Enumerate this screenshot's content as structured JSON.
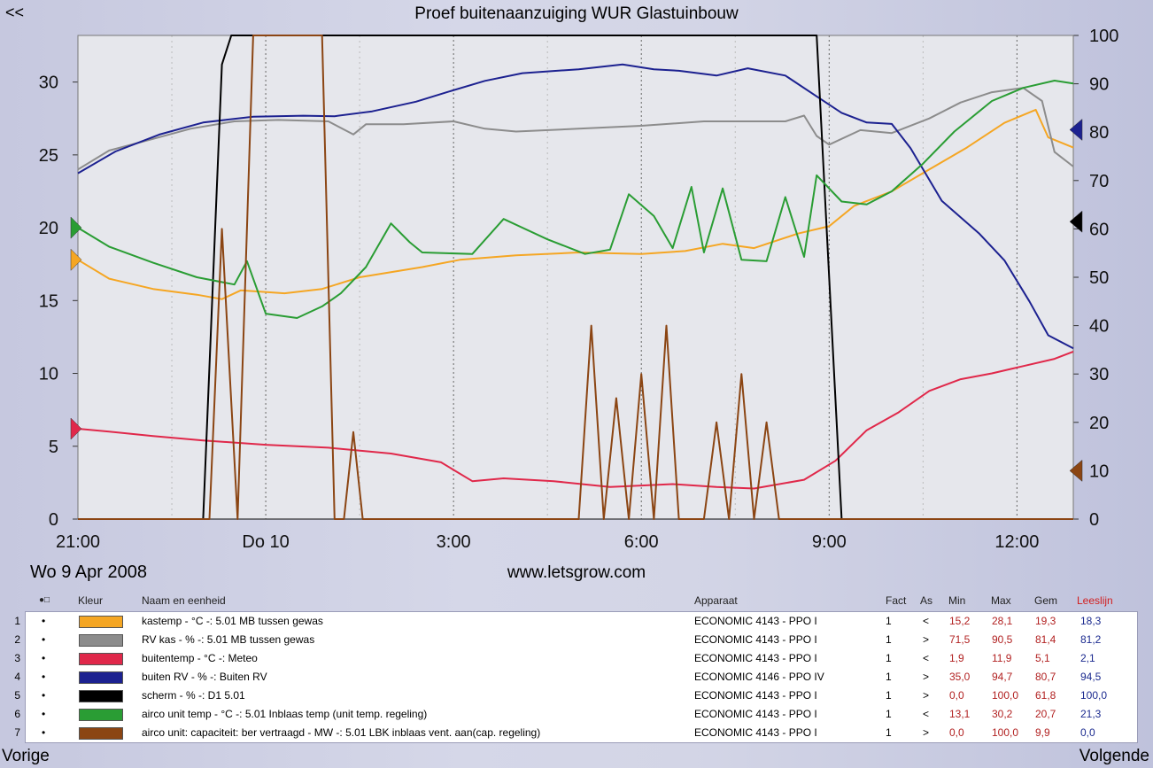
{
  "header": {
    "back_label": "<<",
    "title": "Proef buitenaanzuiging WUR Glastuinbouw"
  },
  "footer": {
    "date": "Wo  9  Apr 2008",
    "url": "www.letsgrow.com",
    "prev_label": "Vorige",
    "next_label": "Volgende"
  },
  "legend": {
    "columns": {
      "dot": "●□",
      "kleur": "Kleur",
      "naam": "Naam en eenheid",
      "apparaat": "Apparaat",
      "fact": "Fact",
      "as": "As",
      "min": "Min",
      "max": "Max",
      "gem": "Gem",
      "leeslijn": "Leeslijn"
    },
    "rows": [
      {
        "num": "1",
        "dot": "•",
        "color": "#f5a623",
        "naam": "kastemp - °C -: 5.01 MB tussen gewas",
        "apparaat": "ECONOMIC 4143 - PPO I",
        "fact": "1",
        "as": "<",
        "min": "15,2",
        "max": "28,1",
        "gem": "19,3",
        "leeslijn": "18,3"
      },
      {
        "num": "2",
        "dot": "•",
        "color": "#8c8c8c",
        "naam": "RV kas - % -: 5.01 MB tussen gewas",
        "apparaat": "ECONOMIC 4143 - PPO I",
        "fact": "1",
        "as": ">",
        "min": "71,5",
        "max": "90,5",
        "gem": "81,4",
        "leeslijn": "81,2"
      },
      {
        "num": "3",
        "dot": "•",
        "color": "#e0284a",
        "naam": "buitentemp - °C -: Meteo",
        "apparaat": "ECONOMIC 4143 - PPO I",
        "fact": "1",
        "as": "<",
        "min": "1,9",
        "max": "11,9",
        "gem": "5,1",
        "leeslijn": "2,1"
      },
      {
        "num": "4",
        "dot": "•",
        "color": "#1c2190",
        "naam": "buiten RV - % -: Buiten RV",
        "apparaat": "ECONOMIC 4146 - PPO IV",
        "fact": "1",
        "as": ">",
        "min": "35,0",
        "max": "94,7",
        "gem": "80,7",
        "leeslijn": "94,5"
      },
      {
        "num": "5",
        "dot": "•",
        "color": "#000000",
        "naam": "scherm - % -: D1 5.01",
        "apparaat": "ECONOMIC 4143 - PPO I",
        "fact": "1",
        "as": ">",
        "min": "0,0",
        "max": "100,0",
        "gem": "61,8",
        "leeslijn": "100,0"
      },
      {
        "num": "6",
        "dot": "•",
        "color": "#2a9d34",
        "naam": "airco unit temp - °C -: 5.01 Inblaas temp (unit temp. regeling)",
        "apparaat": "ECONOMIC 4143 - PPO I",
        "fact": "1",
        "as": "<",
        "min": "13,1",
        "max": "30,2",
        "gem": "20,7",
        "leeslijn": "21,3"
      },
      {
        "num": "7",
        "dot": "•",
        "color": "#8b4513",
        "naam": "airco unit: capaciteit: ber vertraagd - MW -: 5.01 LBK inblaas vent. aan(cap. regeling)",
        "apparaat": "ECONOMIC 4143 - PPO I",
        "fact": "1",
        "as": ">",
        "min": "0,0",
        "max": "100,0",
        "gem": "9,9",
        "leeslijn": "0,0"
      }
    ]
  },
  "chart_data": {
    "type": "line",
    "x_ticks": [
      {
        "x": 21,
        "label": "21:00"
      },
      {
        "x": 24,
        "label": "Do  10"
      },
      {
        "x": 27,
        "label": "3:00"
      },
      {
        "x": 30,
        "label": "6:00"
      },
      {
        "x": 33,
        "label": "9:00"
      },
      {
        "x": 36,
        "label": "12:00"
      }
    ],
    "xlim": [
      21,
      36.9
    ],
    "y_left": {
      "ticks": [
        "0",
        "5",
        "10",
        "15",
        "20",
        "25",
        "30"
      ],
      "ylim": [
        0,
        33.2
      ]
    },
    "y_right": {
      "ticks": [
        "0",
        "10",
        "20",
        "30",
        "40",
        "50",
        "60",
        "70",
        "80",
        "90",
        "100"
      ],
      "ylim": [
        0,
        100
      ]
    },
    "grid": true,
    "series": [
      {
        "color": "#f5a623",
        "axis": "left",
        "points": [
          [
            21,
            17.8
          ],
          [
            21.5,
            16.5
          ],
          [
            22.2,
            15.8
          ],
          [
            22.9,
            15.4
          ],
          [
            23.3,
            15.1
          ],
          [
            23.6,
            15.7
          ],
          [
            24.3,
            15.5
          ],
          [
            24.9,
            15.8
          ],
          [
            25.5,
            16.6
          ],
          [
            26.5,
            17.3
          ],
          [
            27.1,
            17.8
          ],
          [
            28,
            18.1
          ],
          [
            29,
            18.3
          ],
          [
            30,
            18.2
          ],
          [
            30.7,
            18.4
          ],
          [
            31.3,
            18.9
          ],
          [
            31.8,
            18.6
          ],
          [
            32.5,
            19.6
          ],
          [
            33,
            20.1
          ],
          [
            33.4,
            21.5
          ],
          [
            34,
            22.5
          ],
          [
            34.6,
            24
          ],
          [
            35.2,
            25.5
          ],
          [
            35.8,
            27.2
          ],
          [
            36.3,
            28.1
          ],
          [
            36.5,
            26.2
          ],
          [
            36.9,
            25.5
          ]
        ]
      },
      {
        "color": "#8c8c8c",
        "axis": "left",
        "points": [
          [
            21,
            24
          ],
          [
            21.5,
            25.3
          ],
          [
            22.2,
            26.1
          ],
          [
            22.8,
            26.8
          ],
          [
            23.5,
            27.3
          ],
          [
            24.2,
            27.4
          ],
          [
            25,
            27.3
          ],
          [
            25.4,
            26.4
          ],
          [
            25.6,
            27.1
          ],
          [
            26.2,
            27.1
          ],
          [
            27,
            27.3
          ],
          [
            27.5,
            26.8
          ],
          [
            28,
            26.6
          ],
          [
            29,
            26.8
          ],
          [
            30,
            27
          ],
          [
            31,
            27.3
          ],
          [
            32.3,
            27.3
          ],
          [
            32.6,
            27.7
          ],
          [
            32.8,
            26.3
          ],
          [
            33,
            25.7
          ],
          [
            33.5,
            26.7
          ],
          [
            34,
            26.5
          ],
          [
            34.6,
            27.5
          ],
          [
            35.1,
            28.6
          ],
          [
            35.6,
            29.3
          ],
          [
            36.1,
            29.6
          ],
          [
            36.4,
            28.7
          ],
          [
            36.6,
            25.2
          ],
          [
            36.9,
            24.2
          ]
        ]
      },
      {
        "color": "#e0284a",
        "axis": "left",
        "points": [
          [
            21,
            6.2
          ],
          [
            21.5,
            6.0
          ],
          [
            22.2,
            5.7
          ],
          [
            23,
            5.4
          ],
          [
            24,
            5.1
          ],
          [
            25,
            4.9
          ],
          [
            26,
            4.5
          ],
          [
            26.8,
            3.9
          ],
          [
            27.3,
            2.6
          ],
          [
            27.8,
            2.8
          ],
          [
            28.6,
            2.6
          ],
          [
            29.5,
            2.2
          ],
          [
            30.5,
            2.4
          ],
          [
            31.2,
            2.2
          ],
          [
            31.8,
            2.1
          ],
          [
            32.6,
            2.7
          ],
          [
            33.1,
            4
          ],
          [
            33.6,
            6.1
          ],
          [
            34.1,
            7.3
          ],
          [
            34.6,
            8.8
          ],
          [
            35.1,
            9.6
          ],
          [
            35.6,
            10
          ],
          [
            36.1,
            10.5
          ],
          [
            36.6,
            11
          ],
          [
            36.9,
            11.5
          ]
        ]
      },
      {
        "color": "#1c2190",
        "axis": "right",
        "points": [
          [
            21,
            71.5
          ],
          [
            21.6,
            76
          ],
          [
            22.3,
            79.5
          ],
          [
            23,
            82
          ],
          [
            23.8,
            83.2
          ],
          [
            24.6,
            83.4
          ],
          [
            25.1,
            83.3
          ],
          [
            25.7,
            84.3
          ],
          [
            26.4,
            86.3
          ],
          [
            26.9,
            88.3
          ],
          [
            27.5,
            90.6
          ],
          [
            28.1,
            92.2
          ],
          [
            29,
            93
          ],
          [
            29.7,
            94
          ],
          [
            30.2,
            93
          ],
          [
            30.6,
            92.7
          ],
          [
            31.2,
            91.7
          ],
          [
            31.7,
            93.2
          ],
          [
            32.3,
            91.7
          ],
          [
            32.8,
            87.4
          ],
          [
            33.2,
            84
          ],
          [
            33.6,
            82
          ],
          [
            34,
            81.7
          ],
          [
            34.3,
            76.7
          ],
          [
            34.8,
            65.8
          ],
          [
            35.4,
            59
          ],
          [
            35.8,
            53.5
          ],
          [
            36.2,
            45
          ],
          [
            36.5,
            38
          ],
          [
            36.9,
            35.3
          ]
        ]
      },
      {
        "color": "#000000",
        "axis": "right",
        "points": [
          [
            21,
            0
          ],
          [
            22.9,
            0
          ],
          [
            23.0,
            0
          ],
          [
            23.3,
            94
          ],
          [
            23.45,
            100
          ],
          [
            25.3,
            100
          ],
          [
            32.8,
            100
          ],
          [
            33.2,
            0
          ],
          [
            36.9,
            0
          ]
        ]
      },
      {
        "color": "#2a9d34",
        "axis": "left",
        "points": [
          [
            21,
            20
          ],
          [
            21.5,
            18.7
          ],
          [
            22.2,
            17.6
          ],
          [
            22.9,
            16.6
          ],
          [
            23.5,
            16.1
          ],
          [
            23.7,
            17.7
          ],
          [
            24,
            14.1
          ],
          [
            24.5,
            13.8
          ],
          [
            24.9,
            14.6
          ],
          [
            25.2,
            15.5
          ],
          [
            25.6,
            17.3
          ],
          [
            26.0,
            20.3
          ],
          [
            26.3,
            19
          ],
          [
            26.5,
            18.3
          ],
          [
            27.3,
            18.2
          ],
          [
            27.8,
            20.6
          ],
          [
            28.5,
            19.2
          ],
          [
            29.1,
            18.2
          ],
          [
            29.5,
            18.5
          ],
          [
            29.8,
            22.3
          ],
          [
            30.2,
            20.8
          ],
          [
            30.5,
            18.6
          ],
          [
            30.8,
            22.8
          ],
          [
            31.0,
            18.3
          ],
          [
            31.3,
            22.7
          ],
          [
            31.6,
            17.8
          ],
          [
            32.0,
            17.7
          ],
          [
            32.3,
            22.1
          ],
          [
            32.6,
            18
          ],
          [
            32.8,
            23.6
          ],
          [
            33.2,
            21.8
          ],
          [
            33.6,
            21.6
          ],
          [
            34,
            22.5
          ],
          [
            34.5,
            24.4
          ],
          [
            35,
            26.6
          ],
          [
            35.6,
            28.7
          ],
          [
            36.1,
            29.6
          ],
          [
            36.6,
            30.1
          ],
          [
            36.9,
            29.9
          ]
        ]
      },
      {
        "color": "#8b4513",
        "axis": "right",
        "points": [
          [
            21,
            0
          ],
          [
            23.1,
            0
          ],
          [
            23.3,
            60
          ],
          [
            23.55,
            0
          ],
          [
            23.8,
            100
          ],
          [
            24.0,
            100
          ],
          [
            24.6,
            100
          ],
          [
            24.9,
            100
          ],
          [
            25.1,
            0
          ],
          [
            25.25,
            0
          ],
          [
            25.4,
            18
          ],
          [
            25.55,
            0
          ],
          [
            29.0,
            0
          ],
          [
            29.2,
            40
          ],
          [
            29.4,
            0
          ],
          [
            29.6,
            25
          ],
          [
            29.8,
            0
          ],
          [
            30.0,
            30
          ],
          [
            30.2,
            0
          ],
          [
            30.4,
            40
          ],
          [
            30.6,
            0
          ],
          [
            31.0,
            0
          ],
          [
            31.2,
            20
          ],
          [
            31.4,
            0
          ],
          [
            31.6,
            30
          ],
          [
            31.8,
            0
          ],
          [
            32.0,
            20
          ],
          [
            32.2,
            0
          ],
          [
            36.9,
            0
          ]
        ]
      }
    ]
  }
}
